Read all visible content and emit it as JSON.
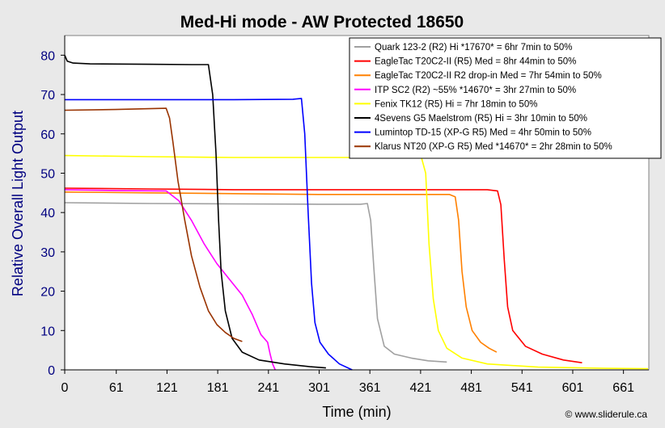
{
  "chart_data": {
    "type": "line",
    "title": "Med-Hi mode - AW Protected 18650",
    "xlabel": "Time (min)",
    "ylabel": "Relative Overall Light Output",
    "xlim": [
      0,
      691
    ],
    "ylim": [
      0,
      85
    ],
    "xticks": [
      0,
      61,
      121,
      181,
      241,
      301,
      361,
      421,
      481,
      541,
      601,
      661
    ],
    "yticks": [
      0,
      10,
      20,
      30,
      40,
      50,
      60,
      70,
      80
    ],
    "grid": false,
    "legend_position": "top-right",
    "credit": "© www.sliderule.ca",
    "series": [
      {
        "name": "Quark 123-2 (R2) Hi *17670* = 6hr 7min to 50%",
        "color": "#a0a0a0",
        "x": [
          0,
          100,
          200,
          300,
          350,
          358,
          362,
          366,
          370,
          378,
          390,
          410,
          430,
          452
        ],
        "y": [
          42.5,
          42.3,
          42.2,
          42.1,
          42.1,
          42.3,
          38,
          25,
          13,
          6,
          4,
          3,
          2.3,
          2
        ]
      },
      {
        "name": "EagleTac T20C2-II (R5) Med = 8hr 44min to 50%",
        "color": "#ff0000",
        "x": [
          0,
          100,
          200,
          300,
          400,
          500,
          512,
          516,
          520,
          524,
          530,
          545,
          565,
          590,
          612
        ],
        "y": [
          46.2,
          46,
          45.8,
          45.8,
          45.8,
          45.8,
          45.5,
          42,
          28,
          16,
          10,
          6,
          4,
          2.5,
          1.8
        ]
      },
      {
        "name": "EagleTac T20C2-II R2 drop-in Med = 7hr 54min to 50%",
        "color": "#ff8000",
        "x": [
          0,
          100,
          200,
          300,
          400,
          455,
          462,
          466,
          470,
          475,
          482,
          492,
          502,
          511
        ],
        "y": [
          45.2,
          45,
          44.8,
          44.6,
          44.6,
          44.6,
          44,
          38,
          25,
          16,
          10,
          7,
          5.5,
          4.5
        ]
      },
      {
        "name": "ITP SC2 (R2) ~55% *14670* = 3hr 27min to 50%",
        "color": "#ff00ff",
        "x": [
          0,
          60,
          120,
          135,
          150,
          165,
          180,
          195,
          210,
          222,
          232,
          240,
          243,
          246,
          249
        ],
        "y": [
          45.8,
          45.6,
          45.5,
          43,
          38,
          32,
          27,
          23,
          19,
          14,
          9,
          7,
          4,
          1.5,
          0
        ]
      },
      {
        "name": "Fenix TK12 (R5) Hi = 7hr 18min to 50%",
        "color": "#ffff00",
        "x": [
          0,
          100,
          200,
          300,
          400,
          422,
          427,
          431,
          436,
          442,
          452,
          470,
          500,
          560,
          640,
          690
        ],
        "y": [
          54.5,
          54.2,
          54,
          54,
          54,
          54,
          50,
          32,
          18,
          10,
          5.5,
          3,
          1.5,
          0.7,
          0.4,
          0.3
        ]
      },
      {
        "name": "4Sevens G5 Maelstrom (R5) Hi = 3hr 10min to 50%",
        "color": "#000000",
        "x": [
          0,
          3,
          10,
          30,
          100,
          150,
          170,
          175,
          179,
          182,
          185,
          190,
          198,
          210,
          230,
          260,
          290,
          309
        ],
        "y": [
          80,
          78.5,
          78,
          77.8,
          77.7,
          77.6,
          77.6,
          70,
          55,
          38,
          25,
          15,
          8,
          4.5,
          2.5,
          1.5,
          0.8,
          0.5
        ]
      },
      {
        "name": "Lumintop TD-15 (XP-G R5) Med = 4hr 50min to 50%",
        "color": "#0000ff",
        "x": [
          0,
          100,
          200,
          270,
          280,
          284,
          288,
          292,
          296,
          302,
          312,
          325,
          340
        ],
        "y": [
          68.7,
          68.7,
          68.7,
          68.8,
          69,
          60,
          40,
          22,
          12,
          7,
          4,
          1.5,
          0
        ]
      },
      {
        "name": "Klarus NT20 (XP-G R5) Med *14670* = 2hr 28min to 50%",
        "color": "#993300",
        "x": [
          0,
          60,
          120,
          124,
          128,
          134,
          142,
          150,
          160,
          170,
          180,
          190,
          200,
          210
        ],
        "y": [
          66,
          66.2,
          66.5,
          64,
          58,
          48,
          38,
          29,
          21,
          15,
          11.5,
          9.5,
          8,
          7.2
        ]
      }
    ]
  }
}
